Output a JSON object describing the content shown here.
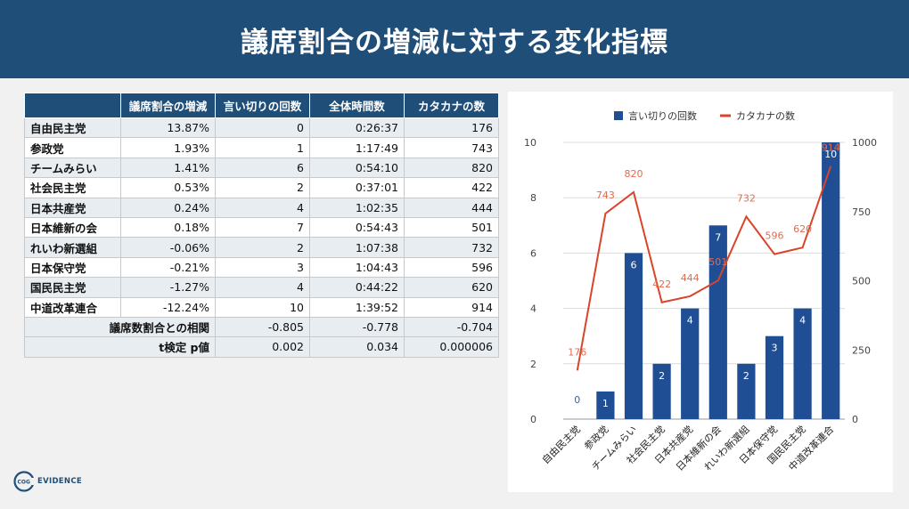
{
  "header": {
    "title": "議席割合の増減に対する変化指標"
  },
  "table": {
    "columns": [
      "",
      "議席割合の増減",
      "言い切りの回数",
      "全体時間数",
      "カタカナの数"
    ],
    "rows": [
      {
        "party": "自由民主党",
        "seat_change": "13.87%",
        "assertions": "0",
        "total_time": "0:26:37",
        "katakana": "176"
      },
      {
        "party": "参政党",
        "seat_change": "1.93%",
        "assertions": "1",
        "total_time": "1:17:49",
        "katakana": "743"
      },
      {
        "party": "チームみらい",
        "seat_change": "1.41%",
        "assertions": "6",
        "total_time": "0:54:10",
        "katakana": "820"
      },
      {
        "party": "社会民主党",
        "seat_change": "0.53%",
        "assertions": "2",
        "total_time": "0:37:01",
        "katakana": "422"
      },
      {
        "party": "日本共産党",
        "seat_change": "0.24%",
        "assertions": "4",
        "total_time": "1:02:35",
        "katakana": "444"
      },
      {
        "party": "日本維新の会",
        "seat_change": "0.18%",
        "assertions": "7",
        "total_time": "0:54:43",
        "katakana": "501"
      },
      {
        "party": "れいわ新選組",
        "seat_change": "-0.06%",
        "assertions": "2",
        "total_time": "1:07:38",
        "katakana": "732"
      },
      {
        "party": "日本保守党",
        "seat_change": "-0.21%",
        "assertions": "3",
        "total_time": "1:04:43",
        "katakana": "596"
      },
      {
        "party": "国民民主党",
        "seat_change": "-1.27%",
        "assertions": "4",
        "total_time": "0:44:22",
        "katakana": "620"
      },
      {
        "party": "中道改革連合",
        "seat_change": "-12.24%",
        "assertions": "10",
        "total_time": "1:39:52",
        "katakana": "914"
      }
    ],
    "summary": [
      {
        "label": "議席数割合との相関",
        "assertions": "-0.805",
        "total_time": "-0.778",
        "katakana": "-0.704"
      },
      {
        "label": "t検定 p値",
        "assertions": "0.002",
        "total_time": "0.034",
        "katakana": "0.000006"
      }
    ]
  },
  "chart_data": {
    "type": "bar",
    "categories": [
      "自由民主党",
      "参政党",
      "チームみらい",
      "社会民主党",
      "日本共産党",
      "日本維新の会",
      "れいわ新選組",
      "日本保守党",
      "国民民主党",
      "中道改革連合"
    ],
    "series": [
      {
        "name": "言い切りの回数",
        "type": "bar",
        "axis": "left",
        "color": "#1f4e95",
        "values": [
          0,
          1,
          6,
          2,
          4,
          7,
          2,
          3,
          4,
          10
        ]
      },
      {
        "name": "カタカナの数",
        "type": "line",
        "axis": "right",
        "color": "#d9442a",
        "values": [
          176,
          743,
          820,
          422,
          444,
          501,
          732,
          596,
          620,
          914
        ]
      }
    ],
    "left_axis": {
      "min": 0,
      "max": 10,
      "ticks": [
        "0",
        "2",
        "4",
        "6",
        "8",
        "10"
      ]
    },
    "right_axis": {
      "min": 0,
      "max": 1000,
      "ticks": [
        "0",
        "250",
        "500",
        "750",
        "1000"
      ]
    },
    "legend_position": "top",
    "grid": true
  },
  "logo": {
    "text": "EVIDENCE",
    "prefix": "COG"
  }
}
